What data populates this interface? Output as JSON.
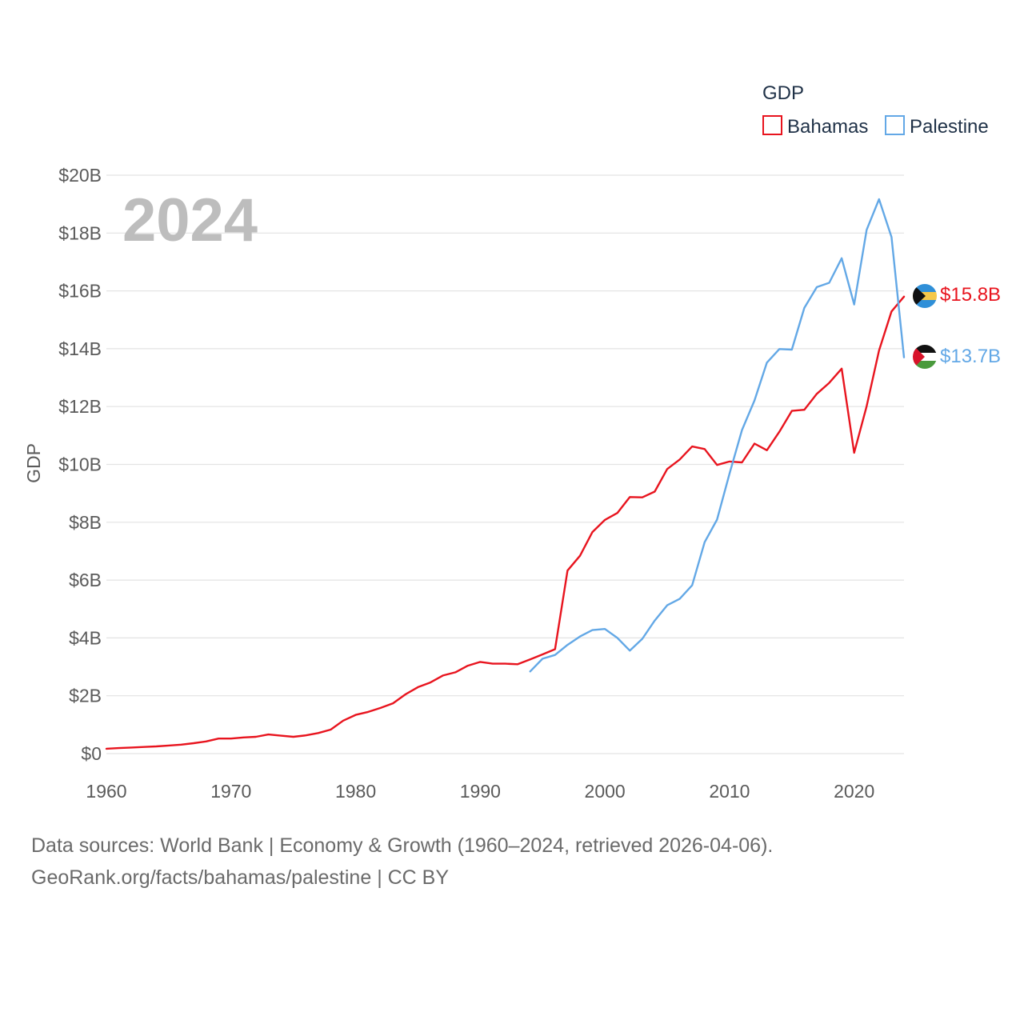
{
  "chart_data": {
    "type": "line",
    "year_label": "2024",
    "legend_title": "GDP",
    "ylabel": "GDP",
    "xlim": [
      1960,
      2024
    ],
    "ylim": [
      0,
      20
    ],
    "x_ticks": [
      "1960",
      "1970",
      "1980",
      "1990",
      "2000",
      "2010",
      "2020"
    ],
    "y_ticks": [
      "$0",
      "$2B",
      "$4B",
      "$6B",
      "$8B",
      "$10B",
      "$12B",
      "$14B",
      "$16B",
      "$18B",
      "$20B"
    ],
    "units": "billions USD",
    "series": [
      {
        "name": "Bahamas",
        "color": "#e8141e",
        "end_label": "$15.8B",
        "flag_icon": "bahamas-flag-icon",
        "x": [
          1960,
          1961,
          1962,
          1963,
          1964,
          1965,
          1966,
          1967,
          1968,
          1969,
          1970,
          1971,
          1972,
          1973,
          1974,
          1975,
          1976,
          1977,
          1978,
          1979,
          1980,
          1981,
          1982,
          1983,
          1984,
          1985,
          1986,
          1987,
          1988,
          1989,
          1990,
          1991,
          1992,
          1993,
          1994,
          1995,
          1996,
          1997,
          1998,
          1999,
          2000,
          2001,
          2002,
          2003,
          2004,
          2005,
          2006,
          2007,
          2008,
          2009,
          2010,
          2011,
          2012,
          2013,
          2014,
          2015,
          2016,
          2017,
          2018,
          2019,
          2020,
          2021,
          2022,
          2023,
          2024
        ],
        "values": [
          0.17,
          0.19,
          0.21,
          0.23,
          0.25,
          0.28,
          0.31,
          0.36,
          0.42,
          0.52,
          0.52,
          0.56,
          0.58,
          0.66,
          0.62,
          0.58,
          0.63,
          0.71,
          0.83,
          1.14,
          1.34,
          1.44,
          1.58,
          1.74,
          2.05,
          2.3,
          2.46,
          2.7,
          2.81,
          3.04,
          3.17,
          3.11,
          3.11,
          3.09,
          3.26,
          3.43,
          3.61,
          6.33,
          6.84,
          7.66,
          8.08,
          8.32,
          8.87,
          8.86,
          9.06,
          9.84,
          10.17,
          10.62,
          10.53,
          9.98,
          10.1,
          10.07,
          10.72,
          10.49,
          11.13,
          11.85,
          11.89,
          12.44,
          12.82,
          13.31,
          10.4,
          12.01,
          13.94,
          15.29,
          15.8
        ]
      },
      {
        "name": "Palestine",
        "color": "#63a8e6",
        "end_label": "$13.7B",
        "flag_icon": "palestine-flag-icon",
        "x": [
          1994,
          1995,
          1996,
          1997,
          1998,
          1999,
          2000,
          2001,
          2002,
          2003,
          2004,
          2005,
          2006,
          2007,
          2008,
          2009,
          2010,
          2011,
          2012,
          2013,
          2014,
          2015,
          2016,
          2017,
          2018,
          2019,
          2020,
          2021,
          2022,
          2023,
          2024
        ],
        "values": [
          2.84,
          3.28,
          3.41,
          3.76,
          4.05,
          4.27,
          4.31,
          4.0,
          3.56,
          3.97,
          4.6,
          5.13,
          5.35,
          5.82,
          7.31,
          8.09,
          9.68,
          11.19,
          12.21,
          13.52,
          13.99,
          13.97,
          15.41,
          16.13,
          16.28,
          17.13,
          15.53,
          18.11,
          19.17,
          17.86,
          13.7
        ]
      }
    ]
  },
  "footer": {
    "line1": "Data sources: World Bank | Economy & Growth (1960–2024, retrieved 2026-04-06).",
    "line2": "GeoRank.org/facts/bahamas/palestine | CC BY"
  }
}
